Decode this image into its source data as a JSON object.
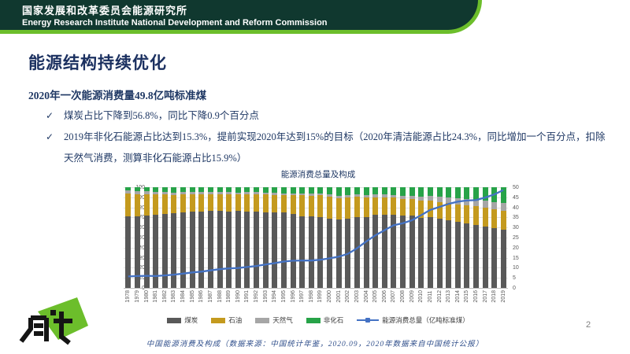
{
  "header": {
    "org_cn": "国家发展和改革委员会能源研究所",
    "org_en": "Energy Research Institute National Development and Reform Commission"
  },
  "slide": {
    "title": "能源结构持续优化",
    "subtitle": "2020年一次能源消费量49.8亿吨标准煤",
    "bullets": [
      {
        "marker": "✓",
        "text": "煤炭占比下降到56.8%，同比下降0.9个百分点"
      },
      {
        "marker": "✓",
        "text": "2019年非化石能源占比达到15.3%，提前实现2020年达到15%的目标（2020年清洁能源占比24.3%，同比增加一个百分点，扣除天然气消费，测算非化石能源占比15.9%）"
      }
    ],
    "caption": "中国能源消费及构成（数据来源：中国统计年鉴，2020.09，2020年数据来自中国统计公报）",
    "page_number": "2"
  },
  "colors": {
    "banner_dark_green": "#10382F",
    "banner_light_green": "#6CBE2B",
    "headline_navy": "#1F3864",
    "coal": "#595959",
    "oil": "#C49A1E",
    "gas": "#A6A6A6",
    "non_fossil": "#27A348",
    "total_line": "#4472C4"
  },
  "chart_data": {
    "type": "bar",
    "subtype": "stacked-percent-with-line",
    "title": "能源消费总量及构成",
    "grid": true,
    "legend_position": "bottom",
    "left_axis": {
      "min": 0,
      "max": 100,
      "step": 10
    },
    "right_axis": {
      "min": 0,
      "max": 50,
      "step": 5
    },
    "categories": [
      "1978",
      "1979",
      "1980",
      "1981",
      "1982",
      "1983",
      "1984",
      "1985",
      "1986",
      "1987",
      "1988",
      "1989",
      "1990",
      "1991",
      "1992",
      "1993",
      "1994",
      "1995",
      "1996",
      "1997",
      "1998",
      "1999",
      "2000",
      "2001",
      "2002",
      "2003",
      "2004",
      "2005",
      "2006",
      "2007",
      "2008",
      "2009",
      "2010",
      "2011",
      "2012",
      "2013",
      "2014",
      "2015",
      "2016",
      "2017",
      "2018",
      "2019"
    ],
    "series": [
      {
        "name": "煤炭",
        "color": "#595959",
        "values": [
          70.7,
          71.3,
          72.2,
          72.7,
          73.7,
          74.2,
          75.3,
          75.8,
          75.8,
          76.2,
          76.2,
          76.1,
          76.2,
          76.1,
          75.7,
          74.7,
          75.0,
          74.6,
          73.5,
          71.4,
          70.9,
          70.6,
          68.5,
          68.0,
          68.5,
          70.2,
          70.2,
          72.4,
          72.4,
          72.5,
          71.5,
          71.6,
          69.2,
          70.2,
          68.5,
          67.4,
          65.8,
          63.8,
          62.2,
          60.6,
          59.0,
          57.7
        ]
      },
      {
        "name": "石油",
        "color": "#C49A1E",
        "values": [
          22.7,
          21.8,
          20.7,
          20.0,
          18.9,
          18.1,
          17.4,
          17.1,
          17.2,
          17.0,
          17.0,
          17.1,
          16.6,
          17.1,
          17.5,
          18.2,
          17.4,
          17.5,
          18.7,
          20.4,
          20.8,
          21.5,
          22.0,
          21.2,
          21.0,
          20.1,
          19.9,
          17.8,
          17.5,
          17.0,
          16.7,
          16.4,
          17.4,
          16.8,
          17.0,
          17.1,
          17.3,
          18.4,
          18.7,
          18.9,
          18.9,
          18.9
        ]
      },
      {
        "name": "天然气",
        "color": "#A6A6A6",
        "values": [
          3.2,
          3.3,
          3.1,
          2.8,
          2.5,
          2.4,
          2.4,
          2.2,
          2.3,
          2.1,
          2.1,
          2.0,
          2.1,
          2.0,
          1.9,
          1.9,
          1.9,
          1.8,
          1.8,
          1.8,
          1.8,
          2.0,
          2.2,
          2.4,
          2.3,
          2.3,
          2.3,
          2.4,
          2.7,
          3.0,
          3.4,
          3.5,
          4.0,
          4.6,
          4.8,
          5.3,
          5.7,
          5.8,
          6.1,
          6.9,
          7.6,
          8.1
        ]
      },
      {
        "name": "非化石",
        "color": "#27A348",
        "values": [
          3.4,
          3.6,
          4.0,
          4.5,
          4.9,
          5.3,
          4.9,
          4.9,
          4.7,
          4.7,
          4.7,
          4.8,
          5.1,
          4.8,
          4.9,
          5.2,
          5.7,
          6.1,
          6.0,
          6.4,
          6.5,
          5.9,
          7.3,
          8.4,
          8.2,
          7.4,
          7.6,
          7.4,
          7.4,
          7.5,
          8.4,
          8.5,
          9.4,
          8.4,
          9.7,
          10.2,
          11.2,
          12.0,
          13.0,
          13.6,
          14.5,
          15.3
        ]
      }
    ],
    "line_series": {
      "name": "能源消费总量（亿吨标准煤）",
      "color": "#4472C4",
      "axis": "right",
      "values": [
        5.7,
        5.9,
        6.0,
        5.9,
        6.2,
        6.6,
        7.1,
        7.7,
        8.1,
        8.7,
        9.3,
        9.7,
        9.9,
        10.4,
        10.9,
        11.6,
        12.3,
        13.1,
        13.5,
        13.6,
        13.6,
        14.0,
        14.7,
        15.5,
        16.9,
        19.7,
        23.0,
        26.1,
        28.6,
        31.1,
        32.1,
        33.6,
        36.1,
        38.7,
        40.2,
        41.7,
        42.8,
        43.4,
        43.6,
        44.9,
        46.4,
        48.6
      ]
    }
  }
}
